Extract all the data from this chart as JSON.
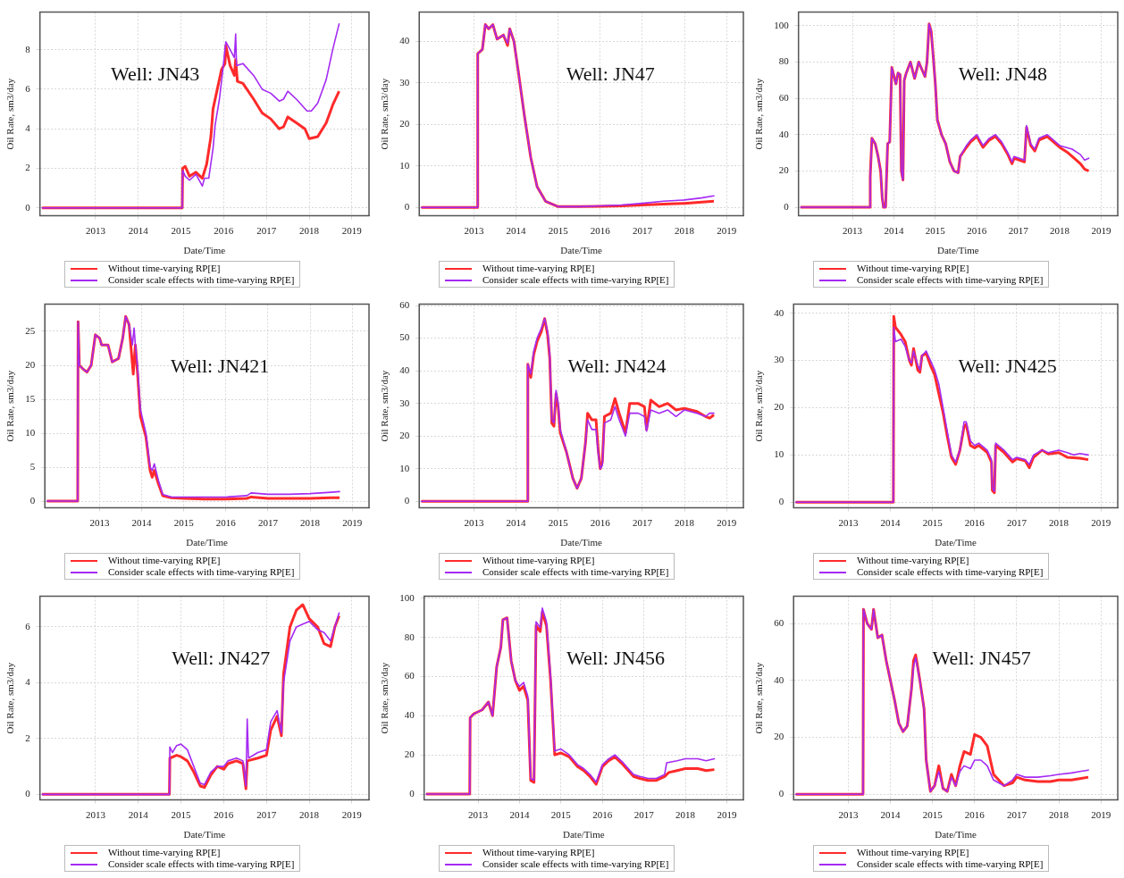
{
  "chart_data": [
    {
      "type": "line",
      "title": "Well: JN43",
      "xlabel": "Date/Time",
      "ylabel": "Oil Rate, sm3/day",
      "xlim": [
        2011.7,
        2019.4
      ],
      "xticks": [
        2013,
        2014,
        2015,
        2016,
        2017,
        2018,
        2019
      ],
      "ylim": [
        -0.4,
        9.9
      ],
      "yticks": [
        0,
        2,
        4,
        6,
        8
      ],
      "grid": true,
      "legend": "bottom",
      "marker": "none",
      "line_style": "solid",
      "series": [
        {
          "name": "Without time-varying RP[E]",
          "color": "#ff2a2a",
          "x": [
            2011.75,
            2015.03,
            2015.04,
            2015.1,
            2015.2,
            2015.35,
            2015.5,
            2015.6,
            2015.7,
            2015.75,
            2015.85,
            2015.95,
            2016.03,
            2016.05,
            2016.15,
            2016.25,
            2016.28,
            2016.32,
            2016.45,
            2016.7,
            2016.9,
            2017.1,
            2017.3,
            2017.4,
            2017.5,
            2017.7,
            2017.9,
            2018.0,
            2018.2,
            2018.4,
            2018.55,
            2018.7
          ],
          "values": [
            0,
            0,
            2.0,
            2.1,
            1.6,
            1.8,
            1.5,
            2.2,
            3.6,
            5.0,
            6,
            7,
            7.3,
            8.2,
            7.2,
            6.7,
            7.5,
            6.4,
            6.3,
            5.5,
            4.8,
            4.5,
            4.0,
            4.1,
            4.6,
            4.3,
            4.0,
            3.5,
            3.6,
            4.3,
            5.2,
            5.9
          ]
        },
        {
          "name": "Consider scale effects with time-varying RP[E]",
          "color": "#a52af2",
          "x": [
            2011.75,
            2015.03,
            2015.04,
            2015.1,
            2015.2,
            2015.35,
            2015.45,
            2015.5,
            2015.55,
            2015.65,
            2015.75,
            2015.8,
            2015.9,
            2015.97,
            2016.05,
            2016.15,
            2016.25,
            2016.28,
            2016.3,
            2016.45,
            2016.7,
            2016.9,
            2017.1,
            2017.3,
            2017.4,
            2017.5,
            2017.7,
            2017.95,
            2018.05,
            2018.2,
            2018.4,
            2018.55,
            2018.7
          ],
          "values": [
            0,
            0,
            1.9,
            1.6,
            1.4,
            1.7,
            1.3,
            1.1,
            1.5,
            1.5,
            3,
            4.2,
            5.5,
            6.8,
            8.4,
            8.0,
            7.6,
            8.8,
            7.2,
            7.3,
            6.7,
            6.0,
            5.8,
            5.4,
            5.5,
            5.9,
            5.5,
            4.9,
            4.9,
            5.3,
            6.5,
            8,
            9.3
          ]
        }
      ]
    },
    {
      "type": "line",
      "title": "Well: JN47",
      "xlabel": "Date/Time",
      "ylabel": "Oil Rate, sm3/day",
      "xlim": [
        2011.7,
        2019.4
      ],
      "xticks": [
        2013,
        2014,
        2015,
        2016,
        2017,
        2018,
        2019
      ],
      "ylim": [
        -2,
        47
      ],
      "yticks": [
        0,
        10,
        20,
        30,
        40
      ],
      "grid": true,
      "legend": "bottom",
      "marker": "none",
      "line_style": "solid",
      "series": [
        {
          "name": "Without time-varying RP[E]",
          "color": "#ff2a2a",
          "x": [
            2011.75,
            2013.08,
            2013.09,
            2013.2,
            2013.27,
            2013.35,
            2013.45,
            2013.55,
            2013.7,
            2013.8,
            2013.85,
            2013.95,
            2014.05,
            2014.2,
            2014.35,
            2014.5,
            2014.7,
            2015.0,
            2015.5,
            2016.0,
            2016.5,
            2017.0,
            2017.5,
            2018.0,
            2018.7
          ],
          "values": [
            0,
            0,
            37,
            38,
            44,
            43,
            44,
            40.5,
            41.5,
            39,
            43,
            40,
            33,
            22,
            12,
            5,
            1.5,
            0.2,
            0.2,
            0.3,
            0.4,
            0.6,
            0.8,
            1.0,
            1.5
          ]
        },
        {
          "name": "Consider scale effects with time-varying RP[E]",
          "color": "#a52af2",
          "x": [
            2011.75,
            2013.08,
            2013.09,
            2013.2,
            2013.27,
            2013.35,
            2013.45,
            2013.55,
            2013.7,
            2013.8,
            2013.85,
            2013.95,
            2014.05,
            2014.2,
            2014.35,
            2014.5,
            2014.7,
            2015.0,
            2015.5,
            2016.0,
            2016.5,
            2017.0,
            2017.5,
            2018.0,
            2018.4,
            2018.7
          ],
          "values": [
            0,
            0,
            37,
            38,
            44,
            43,
            44,
            40.5,
            41.5,
            39.5,
            43,
            40,
            33,
            22,
            12,
            5,
            1.5,
            0.2,
            0.2,
            0.4,
            0.6,
            1.0,
            1.5,
            1.8,
            2.3,
            2.8
          ]
        }
      ]
    },
    {
      "type": "line",
      "title": "Well: JN48",
      "xlabel": "Date/Time",
      "ylabel": "Oil Rate, sm3/day",
      "xlim": [
        2011.7,
        2019.4
      ],
      "xticks": [
        2013,
        2014,
        2015,
        2016,
        2017,
        2018,
        2019
      ],
      "ylim": [
        -4.7,
        107.5
      ],
      "yticks": [
        0,
        20,
        40,
        60,
        80,
        100
      ],
      "grid": true,
      "legend": "bottom",
      "marker": "none",
      "line_style": "solid",
      "series": [
        {
          "name": "Without time-varying RP[E]",
          "color": "#ff2a2a",
          "x": [
            2011.75,
            2013.42,
            2013.43,
            2013.47,
            2013.55,
            2013.62,
            2013.68,
            2013.72,
            2013.75,
            2013.8,
            2013.85,
            2013.9,
            2013.95,
            2014.05,
            2014.1,
            2014.15,
            2014.18,
            2014.22,
            2014.25,
            2014.3,
            2014.4,
            2014.5,
            2014.6,
            2014.75,
            2014.8,
            2014.85,
            2014.9,
            2014.95,
            2015.0,
            2015.05,
            2015.15,
            2015.25,
            2015.35,
            2015.45,
            2015.55,
            2015.6,
            2015.75,
            2015.85,
            2016.0,
            2016.15,
            2016.3,
            2016.45,
            2016.6,
            2016.75,
            2016.85,
            2016.9,
            2017.15,
            2017.2,
            2017.3,
            2017.4,
            2017.5,
            2017.7,
            2017.9,
            2018.0,
            2018.2,
            2018.35,
            2018.5,
            2018.6,
            2018.7
          ],
          "values": [
            0,
            0,
            17,
            38,
            35,
            28,
            20,
            5,
            0,
            0,
            35,
            36,
            77,
            68,
            74,
            73,
            20,
            15,
            70,
            74,
            80,
            71,
            80,
            72,
            80,
            101,
            97,
            83,
            68,
            48,
            40,
            35,
            25,
            20,
            19,
            28,
            33,
            36,
            39,
            33,
            37,
            39,
            35,
            29,
            24,
            27,
            25,
            44,
            34,
            31,
            37,
            39,
            35,
            33,
            30,
            27,
            24,
            21,
            20
          ]
        },
        {
          "name": "Consider scale effects with time-varying RP[E]",
          "color": "#a52af2",
          "x": [
            2011.75,
            2013.42,
            2013.43,
            2013.47,
            2013.55,
            2013.62,
            2013.68,
            2013.72,
            2013.75,
            2013.8,
            2013.85,
            2013.9,
            2013.95,
            2014.05,
            2014.1,
            2014.15,
            2014.18,
            2014.22,
            2014.25,
            2014.3,
            2014.4,
            2014.5,
            2014.6,
            2014.75,
            2014.8,
            2014.85,
            2014.9,
            2014.95,
            2015.0,
            2015.05,
            2015.15,
            2015.25,
            2015.35,
            2015.45,
            2015.55,
            2015.6,
            2015.75,
            2015.85,
            2016.0,
            2016.15,
            2016.3,
            2016.45,
            2016.6,
            2016.75,
            2016.85,
            2016.9,
            2017.15,
            2017.2,
            2017.3,
            2017.4,
            2017.5,
            2017.7,
            2017.9,
            2018.0,
            2018.15,
            2018.3,
            2018.5,
            2018.6,
            2018.7
          ],
          "values": [
            0,
            0,
            17,
            38,
            35,
            28,
            20,
            5,
            0,
            0,
            35,
            36,
            77,
            68,
            74,
            73,
            20,
            15,
            70,
            74,
            80,
            71,
            80,
            72,
            80,
            101,
            97,
            83,
            68,
            48,
            40,
            35,
            25,
            20,
            19,
            28,
            34,
            37,
            40,
            34,
            38,
            40,
            36,
            30,
            25,
            28,
            26,
            45,
            35,
            32,
            38,
            40,
            36,
            34,
            33,
            32,
            29,
            26,
            27
          ]
        }
      ]
    },
    {
      "type": "line",
      "title": "Well: JN421",
      "xlabel": "Date/Time",
      "ylabel": "Oil Rate, sm3/day",
      "xlim": [
        2011.7,
        2019.4
      ],
      "xticks": [
        2013,
        2014,
        2015,
        2016,
        2017,
        2018,
        2019
      ],
      "ylim": [
        -1,
        29
      ],
      "yticks": [
        0,
        5,
        10,
        15,
        20,
        25
      ],
      "grid": true,
      "legend": "bottom",
      "marker": "none",
      "line_style": "solid",
      "series": [
        {
          "name": "Without time-varying RP[E]",
          "color": "#ff2a2a",
          "x": [
            2011.75,
            2012.48,
            2012.49,
            2012.52,
            2012.6,
            2012.7,
            2012.8,
            2012.9,
            2013.0,
            2013.05,
            2013.2,
            2013.3,
            2013.45,
            2013.55,
            2013.62,
            2013.7,
            2013.8,
            2013.85,
            2013.9,
            2013.97,
            2014.1,
            2014.2,
            2014.25,
            2014.3,
            2014.4,
            2014.5,
            2014.7,
            2015.0,
            2015.5,
            2016.0,
            2016.5,
            2016.6,
            2017.0,
            2017.5,
            2018.0,
            2018.5,
            2018.7
          ],
          "values": [
            0,
            0,
            26.4,
            20,
            19.5,
            19,
            20,
            24.5,
            24,
            23,
            23,
            20.5,
            21,
            24,
            27.2,
            26,
            18.7,
            23,
            19,
            12.5,
            9.5,
            4.5,
            3.5,
            4.5,
            2.5,
            0.8,
            0.5,
            0.4,
            0.3,
            0.3,
            0.4,
            0.6,
            0.4,
            0.4,
            0.4,
            0.5,
            0.5
          ]
        },
        {
          "name": "Consider scale effects with time-varying RP[E]",
          "color": "#a52af2",
          "x": [
            2011.75,
            2012.48,
            2012.49,
            2012.52,
            2012.6,
            2012.7,
            2012.8,
            2012.9,
            2013.0,
            2013.05,
            2013.2,
            2013.3,
            2013.45,
            2013.55,
            2013.62,
            2013.7,
            2013.78,
            2013.82,
            2013.85,
            2013.9,
            2013.97,
            2014.1,
            2014.2,
            2014.25,
            2014.3,
            2014.4,
            2014.5,
            2014.7,
            2015.0,
            2015.5,
            2016.0,
            2016.5,
            2016.6,
            2017.0,
            2017.5,
            2018.0,
            2018.5,
            2018.7
          ],
          "values": [
            0,
            0,
            26.4,
            20,
            19.5,
            19,
            20,
            24.5,
            24,
            23,
            23,
            20.5,
            21,
            24,
            27.2,
            26,
            23,
            25.5,
            23,
            20,
            13.5,
            10,
            5,
            4.5,
            5.5,
            3,
            1,
            0.6,
            0.6,
            0.6,
            0.6,
            0.8,
            1.2,
            1.0,
            1.0,
            1.1,
            1.3,
            1.4
          ]
        }
      ]
    },
    {
      "type": "line",
      "title": "Well: JN424",
      "xlabel": "Date/Time",
      "ylabel": "Oil Rate, sm3/day",
      "xlim": [
        2011.7,
        2019.4
      ],
      "xticks": [
        2013,
        2014,
        2015,
        2016,
        2017,
        2018,
        2019
      ],
      "ylim": [
        -2,
        60.4
      ],
      "yticks": [
        0,
        10,
        20,
        30,
        40,
        50,
        60
      ],
      "grid": true,
      "legend": "bottom",
      "marker": "none",
      "line_style": "solid",
      "series": [
        {
          "name": "Without time-varying RP[E]",
          "color": "#ff2a2a",
          "x": [
            2011.75,
            2014.27,
            2014.28,
            2014.35,
            2014.42,
            2014.5,
            2014.6,
            2014.68,
            2014.75,
            2014.8,
            2014.85,
            2014.9,
            2014.95,
            2015.0,
            2015.05,
            2015.2,
            2015.35,
            2015.45,
            2015.55,
            2015.65,
            2015.7,
            2015.8,
            2015.9,
            2015.95,
            2016.0,
            2016.05,
            2016.1,
            2016.25,
            2016.35,
            2016.45,
            2016.6,
            2016.7,
            2016.9,
            2017.05,
            2017.1,
            2017.2,
            2017.4,
            2017.6,
            2017.8,
            2018.0,
            2018.3,
            2018.5,
            2018.6,
            2018.7
          ],
          "values": [
            0,
            0,
            42,
            38,
            45,
            49,
            52,
            56,
            51,
            44,
            24,
            23,
            33,
            29,
            21,
            15,
            7,
            4,
            7,
            18,
            27,
            25,
            25,
            16,
            10,
            12,
            26,
            27,
            31.5,
            27,
            21,
            30,
            30,
            29,
            22,
            31,
            29,
            30,
            28,
            28.5,
            27.5,
            26,
            25.5,
            26.5
          ]
        },
        {
          "name": "Consider scale effects with time-varying RP[E]",
          "color": "#a52af2",
          "x": [
            2011.75,
            2014.27,
            2014.28,
            2014.35,
            2014.42,
            2014.5,
            2014.6,
            2014.68,
            2014.75,
            2014.8,
            2014.85,
            2014.9,
            2014.95,
            2015.0,
            2015.05,
            2015.2,
            2015.35,
            2015.45,
            2015.55,
            2015.65,
            2015.7,
            2015.8,
            2015.9,
            2015.95,
            2016.0,
            2016.05,
            2016.1,
            2016.25,
            2016.35,
            2016.45,
            2016.6,
            2016.7,
            2016.9,
            2017.05,
            2017.1,
            2017.2,
            2017.4,
            2017.6,
            2017.8,
            2018.0,
            2018.3,
            2018.5,
            2018.6,
            2018.7
          ],
          "values": [
            0,
            0,
            42,
            39,
            46,
            50,
            53,
            56,
            52,
            45,
            25,
            24,
            34,
            30,
            22,
            15,
            7,
            4,
            7,
            18,
            25,
            22,
            22,
            15,
            10,
            11,
            24,
            25,
            29,
            25,
            20,
            27,
            27,
            26,
            21.5,
            28,
            27,
            28,
            26,
            28,
            27,
            26,
            27,
            27
          ]
        }
      ]
    },
    {
      "type": "line",
      "title": "Well: JN425",
      "xlabel": "Date/Time",
      "ylabel": "Oil Rate, sm3/day",
      "xlim": [
        2011.7,
        2019.4
      ],
      "xticks": [
        2013,
        2014,
        2015,
        2016,
        2017,
        2018,
        2019
      ],
      "ylim": [
        -1.2,
        41.9
      ],
      "yticks": [
        0,
        10,
        20,
        30,
        40
      ],
      "grid": true,
      "legend": "bottom",
      "marker": "none",
      "line_style": "solid",
      "series": [
        {
          "name": "Without time-varying RP[E]",
          "color": "#ff2a2a",
          "x": [
            2011.75,
            2014.07,
            2014.08,
            2014.12,
            2014.25,
            2014.35,
            2014.45,
            2014.5,
            2014.55,
            2014.65,
            2014.7,
            2014.75,
            2014.85,
            2014.95,
            2015.05,
            2015.15,
            2015.25,
            2015.35,
            2015.45,
            2015.55,
            2015.65,
            2015.75,
            2015.8,
            2015.9,
            2016.0,
            2016.1,
            2016.3,
            2016.4,
            2016.42,
            2016.47,
            2016.5,
            2016.7,
            2016.9,
            2017.0,
            2017.2,
            2017.3,
            2017.4,
            2017.6,
            2017.75,
            2018.0,
            2018.2,
            2018.5,
            2018.7
          ],
          "values": [
            0,
            0,
            39.3,
            37,
            35.5,
            34,
            30,
            29,
            32.5,
            28,
            27.5,
            31,
            31.5,
            29,
            27,
            23,
            19,
            14,
            9.5,
            8,
            11,
            16,
            16.5,
            12,
            11.5,
            12,
            10.5,
            8.5,
            2.5,
            2,
            12,
            10.5,
            8.5,
            9.2,
            8.8,
            7.3,
            9.5,
            11,
            10.2,
            10.5,
            9.5,
            9.3,
            9
          ]
        },
        {
          "name": "Consider scale effects with time-varying RP[E]",
          "color": "#a52af2",
          "x": [
            2011.75,
            2014.07,
            2014.08,
            2014.12,
            2014.25,
            2014.35,
            2014.45,
            2014.5,
            2014.55,
            2014.65,
            2014.7,
            2014.75,
            2014.85,
            2014.95,
            2015.05,
            2015.15,
            2015.25,
            2015.35,
            2015.45,
            2015.55,
            2015.65,
            2015.75,
            2015.8,
            2015.9,
            2016.0,
            2016.1,
            2016.3,
            2016.4,
            2016.42,
            2016.47,
            2016.5,
            2016.7,
            2016.9,
            2017.0,
            2017.2,
            2017.3,
            2017.4,
            2017.6,
            2017.75,
            2018.0,
            2018.2,
            2018.35,
            2018.5,
            2018.7
          ],
          "values": [
            0,
            0,
            37,
            34,
            34.5,
            33,
            30,
            29.5,
            32,
            29,
            28,
            31,
            32,
            30,
            28,
            25,
            20,
            15,
            10,
            8.5,
            11,
            17,
            17,
            13,
            12,
            12.5,
            11,
            9,
            3,
            2.3,
            12.5,
            11,
            9,
            9.5,
            9,
            8,
            10,
            11,
            10.5,
            11,
            10.5,
            10,
            10.3,
            10
          ]
        }
      ]
    },
    {
      "type": "line",
      "title": "Well: JN427",
      "xlabel": "Date/Time",
      "ylabel": "Oil Rate, sm3/day",
      "xlim": [
        2011.7,
        2019.4
      ],
      "xticks": [
        2013,
        2014,
        2015,
        2016,
        2017,
        2018,
        2019
      ],
      "ylim": [
        -0.2,
        7.1
      ],
      "yticks": [
        0,
        2,
        4,
        6
      ],
      "grid": true,
      "legend": "bottom",
      "marker": "none",
      "line_style": "solid",
      "series": [
        {
          "name": "Without time-varying RP[E]",
          "color": "#ff2a2a",
          "x": [
            2011.75,
            2014.73,
            2014.74,
            2014.9,
            2015.0,
            2015.15,
            2015.3,
            2015.45,
            2015.55,
            2015.7,
            2015.85,
            2016.0,
            2016.1,
            2016.3,
            2016.45,
            2016.52,
            2016.55,
            2016.8,
            2017.0,
            2017.1,
            2017.25,
            2017.35,
            2017.4,
            2017.55,
            2017.7,
            2017.85,
            2018.0,
            2018.2,
            2018.35,
            2018.5,
            2018.6,
            2018.7
          ],
          "values": [
            0,
            0,
            1.3,
            1.4,
            1.35,
            1.2,
            0.8,
            0.3,
            0.25,
            0.7,
            1.0,
            0.9,
            1.1,
            1.2,
            1.1,
            0.2,
            1.2,
            1.3,
            1.4,
            2.3,
            2.8,
            2.1,
            4.3,
            6.0,
            6.6,
            6.8,
            6.3,
            6.0,
            5.4,
            5.3,
            6.0,
            6.4
          ]
        },
        {
          "name": "Consider scale effects with time-varying RP[E]",
          "color": "#a52af2",
          "x": [
            2011.75,
            2014.73,
            2014.74,
            2014.8,
            2014.9,
            2015.0,
            2015.15,
            2015.3,
            2015.45,
            2015.55,
            2015.7,
            2015.85,
            2016.0,
            2016.1,
            2016.3,
            2016.45,
            2016.52,
            2016.55,
            2016.58,
            2016.8,
            2017.0,
            2017.1,
            2017.25,
            2017.35,
            2017.4,
            2017.55,
            2017.7,
            2017.85,
            2018.0,
            2018.2,
            2018.35,
            2018.5,
            2018.6,
            2018.7
          ],
          "values": [
            0,
            0,
            1.7,
            1.5,
            1.75,
            1.8,
            1.6,
            1.0,
            0.4,
            0.35,
            0.8,
            1.0,
            1.0,
            1.2,
            1.3,
            1.2,
            0.3,
            2.7,
            1.3,
            1.5,
            1.6,
            2.6,
            3.0,
            2.2,
            4.0,
            5.5,
            6.0,
            6.1,
            6.2,
            5.9,
            5.8,
            5.5,
            6.0,
            6.5
          ]
        }
      ]
    },
    {
      "type": "line",
      "title": "Well: JN456",
      "xlabel": "Date/Time",
      "ylabel": "Oil Rate, sm3/day",
      "xlim": [
        2011.7,
        2019.4
      ],
      "xticks": [
        2013,
        2014,
        2015,
        2016,
        2017,
        2018,
        2019
      ],
      "ylim": [
        -3,
        101
      ],
      "yticks": [
        0,
        20,
        40,
        60,
        80,
        100
      ],
      "grid": true,
      "legend": "bottom",
      "marker": "none",
      "line_style": "solid",
      "series": [
        {
          "name": "Without time-varying RP[E]",
          "color": "#ff2a2a",
          "x": [
            2011.75,
            2012.8,
            2012.81,
            2012.9,
            2013.1,
            2013.25,
            2013.35,
            2013.45,
            2013.55,
            2013.6,
            2013.7,
            2013.8,
            2013.9,
            2014.0,
            2014.1,
            2014.2,
            2014.27,
            2014.35,
            2014.4,
            2014.5,
            2014.55,
            2014.65,
            2014.75,
            2014.85,
            2015.0,
            2015.2,
            2015.4,
            2015.55,
            2015.7,
            2015.85,
            2016.0,
            2016.15,
            2016.3,
            2016.5,
            2016.75,
            2016.9,
            2017.1,
            2017.3,
            2017.5,
            2017.6,
            2017.8,
            2018.0,
            2018.3,
            2018.5,
            2018.7
          ],
          "values": [
            0,
            0,
            39,
            41,
            43,
            47,
            40,
            65,
            75,
            89,
            90,
            68,
            58,
            53,
            55,
            48,
            7,
            6,
            86,
            83,
            93,
            86,
            58,
            20,
            21,
            19,
            14,
            12,
            9,
            5,
            14,
            17,
            19,
            15,
            9,
            8,
            7,
            7,
            9,
            11,
            12,
            13,
            13,
            12,
            12.5
          ]
        },
        {
          "name": "Consider scale effects with time-varying RP[E]",
          "color": "#a52af2",
          "x": [
            2011.75,
            2012.8,
            2012.81,
            2012.9,
            2013.1,
            2013.25,
            2013.35,
            2013.45,
            2013.55,
            2013.6,
            2013.7,
            2013.8,
            2013.9,
            2014.0,
            2014.1,
            2014.2,
            2014.27,
            2014.35,
            2014.4,
            2014.5,
            2014.55,
            2014.65,
            2014.75,
            2014.85,
            2015.0,
            2015.2,
            2015.4,
            2015.55,
            2015.7,
            2015.85,
            2016.0,
            2016.15,
            2016.3,
            2016.5,
            2016.75,
            2016.9,
            2017.1,
            2017.3,
            2017.5,
            2017.55,
            2017.8,
            2018.0,
            2018.3,
            2018.5,
            2018.7
          ],
          "values": [
            0,
            0,
            39,
            41,
            43,
            47,
            40,
            65,
            75,
            89,
            90,
            68,
            58,
            55,
            57,
            50,
            8,
            7,
            88,
            85,
            95,
            88,
            60,
            22,
            23,
            20,
            15,
            13,
            10,
            6,
            15,
            18,
            20,
            16,
            10,
            9,
            8,
            8,
            10,
            16,
            17,
            18,
            18,
            17,
            18
          ]
        }
      ]
    },
    {
      "type": "line",
      "title": "Well: JN457",
      "xlabel": "Date/Time",
      "ylabel": "Oil Rate, sm3/day",
      "xlim": [
        2011.7,
        2019.4
      ],
      "xticks": [
        2013,
        2014,
        2015,
        2016,
        2017,
        2018,
        2019
      ],
      "ylim": [
        -2,
        69.6
      ],
      "yticks": [
        0,
        20,
        40,
        60
      ],
      "grid": true,
      "legend": "bottom",
      "marker": "none",
      "line_style": "solid",
      "series": [
        {
          "name": "Without time-varying RP[E]",
          "color": "#ff2a2a",
          "x": [
            2011.75,
            2013.35,
            2013.36,
            2013.45,
            2013.55,
            2013.6,
            2013.7,
            2013.8,
            2013.9,
            2014.0,
            2014.1,
            2014.2,
            2014.3,
            2014.4,
            2014.5,
            2014.55,
            2014.6,
            2014.7,
            2014.8,
            2014.85,
            2014.95,
            2015.05,
            2015.15,
            2015.25,
            2015.35,
            2015.45,
            2015.55,
            2015.65,
            2015.75,
            2015.9,
            2016.0,
            2016.15,
            2016.3,
            2016.45,
            2016.7,
            2016.9,
            2017.0,
            2017.2,
            2017.5,
            2017.8,
            2018.0,
            2018.3,
            2018.5,
            2018.7
          ],
          "values": [
            0,
            0,
            65,
            60,
            58,
            65,
            55,
            56,
            47,
            40,
            33,
            25,
            22,
            24,
            37,
            47,
            49,
            40,
            30,
            12,
            1,
            3,
            10,
            2,
            1,
            7,
            3,
            10,
            15,
            14,
            21,
            20,
            17,
            7,
            3,
            4,
            6,
            5,
            4.5,
            4.5,
            5,
            5,
            5.5,
            6
          ]
        },
        {
          "name": "Consider scale effects with time-varying RP[E]",
          "color": "#a52af2",
          "x": [
            2011.75,
            2013.35,
            2013.36,
            2013.45,
            2013.55,
            2013.6,
            2013.7,
            2013.8,
            2013.9,
            2014.0,
            2014.1,
            2014.2,
            2014.3,
            2014.4,
            2014.5,
            2014.55,
            2014.6,
            2014.7,
            2014.8,
            2014.85,
            2014.95,
            2015.05,
            2015.15,
            2015.25,
            2015.35,
            2015.45,
            2015.55,
            2015.65,
            2015.75,
            2015.9,
            2016.0,
            2016.15,
            2016.3,
            2016.45,
            2016.7,
            2016.9,
            2017.0,
            2017.2,
            2017.5,
            2017.8,
            2018.0,
            2018.3,
            2018.5,
            2018.7
          ],
          "values": [
            0,
            0,
            65,
            60,
            58,
            65,
            55,
            56,
            47,
            40,
            33,
            25,
            22,
            24,
            37,
            45,
            48,
            40,
            30,
            12,
            1,
            3,
            8,
            2,
            1,
            6,
            3,
            8,
            10,
            9,
            12,
            12,
            10,
            5,
            3,
            5,
            7,
            6,
            6,
            6.5,
            7,
            7.5,
            8,
            8.5
          ]
        }
      ]
    }
  ]
}
